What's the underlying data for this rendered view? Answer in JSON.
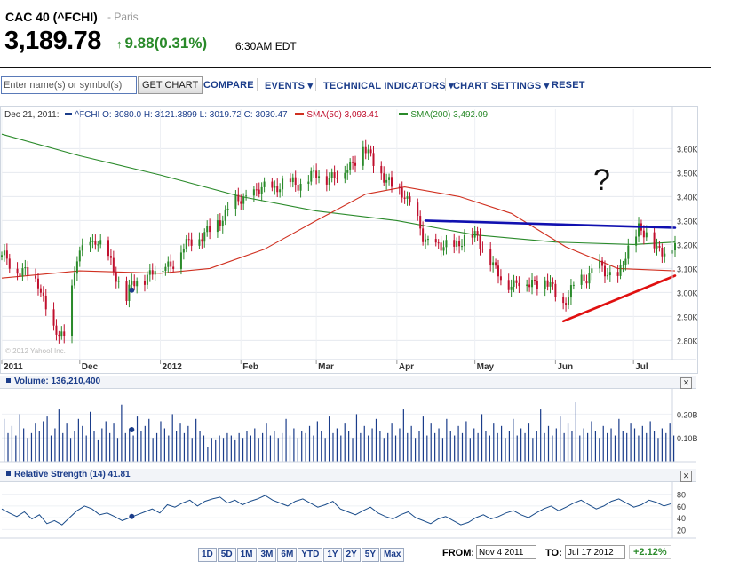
{
  "header": {
    "title": "CAC 40 (^FCHI)",
    "exchange": "- Paris",
    "price": "3,189.78",
    "change": "9.88(0.31%)",
    "time": "6:30AM EDT"
  },
  "toolbar": {
    "search_placeholder": "Enter name(s) or symbol(s)",
    "get_chart": "GET CHART",
    "compare": "COMPARE",
    "events": "EVENTS ▾",
    "technical": "TECHNICAL INDICATORS ▾",
    "settings": "CHART SETTINGS ▾",
    "reset": "RESET"
  },
  "legend": {
    "date": "Dec 21, 2011:",
    "ohlc": "^FCHI O: 3080.0 H: 3121.3899 L: 3019.72 C: 3030.47",
    "sma50": "SMA(50) 3,093.41",
    "sma200": "SMA(200) 3,492.09"
  },
  "copyright": "© 2012 Yahoo! Inc.",
  "annotation_text": "?",
  "volume_panel": {
    "title": "Volume: 136,210,400"
  },
  "rsi_panel": {
    "title": "Relative Strength (14) 41.81"
  },
  "ranges": [
    "1D",
    "5D",
    "1M",
    "3M",
    "6M",
    "YTD",
    "1Y",
    "2Y",
    "5Y",
    "Max"
  ],
  "footer": {
    "from_label": "FROM:",
    "from_value": "Nov 4 2011",
    "to_label": "TO:",
    "to_value": "Jul 17 2012",
    "change_pct": "+2.12%"
  },
  "colors": {
    "up": "#2a8a2a",
    "down": "#c0102e",
    "sma50": "#d03020",
    "sma200": "#2a8a2a",
    "volume": "#1a3c8a",
    "rsi": "#1a4c8a",
    "resistance": "#1010b0",
    "support": "#e01010"
  },
  "chart_data": [
    {
      "type": "candlestick",
      "title": "",
      "xlabel": "",
      "ylabel": "",
      "x_range": [
        "2011-11-01",
        "2012-07-17"
      ],
      "xticks": [
        {
          "label": "2011",
          "date": "2011-11-01"
        },
        {
          "label": "Dec",
          "date": "2011-12-01"
        },
        {
          "label": "2012",
          "date": "2012-01-01"
        },
        {
          "label": "Feb",
          "date": "2012-02-01"
        },
        {
          "label": "Mar",
          "date": "2012-03-01"
        },
        {
          "label": "Apr",
          "date": "2012-04-01"
        },
        {
          "label": "May",
          "date": "2012-05-01"
        },
        {
          "label": "Jun",
          "date": "2012-06-01"
        },
        {
          "label": "Jul",
          "date": "2012-07-01"
        }
      ],
      "yticks": [
        2800,
        2900,
        3000,
        3100,
        3200,
        3300,
        3400,
        3500,
        3600
      ],
      "yticklabels": [
        "2.80K",
        "2.90K",
        "3.00K",
        "3.10K",
        "3.20K",
        "3.30K",
        "3.40K",
        "3.50K",
        "3.60K"
      ],
      "ylim": [
        2720,
        3720
      ],
      "close_series": [
        {
          "date": "2011-11-01",
          "close": 3150
        },
        {
          "date": "2011-11-08",
          "close": 3090
        },
        {
          "date": "2011-11-15",
          "close": 3050
        },
        {
          "date": "2011-11-21",
          "close": 2830
        },
        {
          "date": "2011-11-25",
          "close": 2820
        },
        {
          "date": "2011-11-30",
          "close": 3140
        },
        {
          "date": "2011-12-07",
          "close": 3230
        },
        {
          "date": "2011-12-14",
          "close": 3100
        },
        {
          "date": "2011-12-19",
          "close": 2970
        },
        {
          "date": "2011-12-21",
          "close": 3030
        },
        {
          "date": "2011-12-28",
          "close": 3080
        },
        {
          "date": "2012-01-06",
          "close": 3130
        },
        {
          "date": "2012-01-13",
          "close": 3220
        },
        {
          "date": "2012-01-20",
          "close": 3250
        },
        {
          "date": "2012-01-27",
          "close": 3350
        },
        {
          "date": "2012-02-03",
          "close": 3400
        },
        {
          "date": "2012-02-10",
          "close": 3430
        },
        {
          "date": "2012-02-17",
          "close": 3450
        },
        {
          "date": "2012-02-24",
          "close": 3460
        },
        {
          "date": "2012-03-02",
          "close": 3490
        },
        {
          "date": "2012-03-09",
          "close": 3480
        },
        {
          "date": "2012-03-16",
          "close": 3560
        },
        {
          "date": "2012-03-19",
          "close": 3600
        },
        {
          "date": "2012-03-23",
          "close": 3550
        },
        {
          "date": "2012-03-30",
          "close": 3430
        },
        {
          "date": "2012-04-04",
          "close": 3420
        },
        {
          "date": "2012-04-11",
          "close": 3230
        },
        {
          "date": "2012-04-18",
          "close": 3180
        },
        {
          "date": "2012-04-25",
          "close": 3210
        },
        {
          "date": "2012-05-02",
          "close": 3240
        },
        {
          "date": "2012-05-09",
          "close": 3080
        },
        {
          "date": "2012-05-16",
          "close": 3030
        },
        {
          "date": "2012-05-23",
          "close": 3050
        },
        {
          "date": "2012-05-30",
          "close": 3030
        },
        {
          "date": "2012-06-04",
          "close": 2950
        },
        {
          "date": "2012-06-11",
          "close": 3060
        },
        {
          "date": "2012-06-18",
          "close": 3100
        },
        {
          "date": "2012-06-25",
          "close": 3060
        },
        {
          "date": "2012-07-03",
          "close": 3280
        },
        {
          "date": "2012-07-10",
          "close": 3180
        },
        {
          "date": "2012-07-17",
          "close": 3190
        }
      ],
      "sma50": [
        {
          "date": "2011-11-01",
          "value": 3060
        },
        {
          "date": "2011-12-01",
          "value": 3090
        },
        {
          "date": "2012-01-01",
          "value": 3080
        },
        {
          "date": "2012-01-20",
          "value": 3100
        },
        {
          "date": "2012-02-10",
          "value": 3180
        },
        {
          "date": "2012-03-01",
          "value": 3300
        },
        {
          "date": "2012-03-20",
          "value": 3410
        },
        {
          "date": "2012-04-04",
          "value": 3440
        },
        {
          "date": "2012-04-25",
          "value": 3400
        },
        {
          "date": "2012-05-15",
          "value": 3330
        },
        {
          "date": "2012-06-05",
          "value": 3190
        },
        {
          "date": "2012-06-25",
          "value": 3100
        },
        {
          "date": "2012-07-17",
          "value": 3090
        }
      ],
      "sma200": [
        {
          "date": "2011-11-01",
          "value": 3660
        },
        {
          "date": "2011-12-01",
          "value": 3570
        },
        {
          "date": "2012-01-01",
          "value": 3490
        },
        {
          "date": "2012-02-01",
          "value": 3400
        },
        {
          "date": "2012-03-01",
          "value": 3340
        },
        {
          "date": "2012-04-01",
          "value": 3300
        },
        {
          "date": "2012-05-01",
          "value": 3240
        },
        {
          "date": "2012-06-01",
          "value": 3210
        },
        {
          "date": "2012-07-01",
          "value": 3200
        },
        {
          "date": "2012-07-17",
          "value": 3210
        }
      ],
      "trendlines": [
        {
          "role": "resistance",
          "from": {
            "date": "2012-04-12",
            "value": 3300
          },
          "to": {
            "date": "2012-07-17",
            "value": 3270
          }
        },
        {
          "role": "support",
          "from": {
            "date": "2012-06-04",
            "value": 2880
          },
          "to": {
            "date": "2012-07-17",
            "value": 3070
          }
        }
      ],
      "grid": true
    },
    {
      "type": "bar",
      "title": "Volume: 136,210,400",
      "yticklabels": [
        "0.10B",
        "0.20B"
      ],
      "yticks": [
        0.1,
        0.2
      ],
      "ylim": [
        0,
        0.28
      ],
      "values_billions": [
        0.18,
        0.12,
        0.15,
        0.11,
        0.2,
        0.14,
        0.1,
        0.12,
        0.16,
        0.13,
        0.17,
        0.19,
        0.11,
        0.14,
        0.22,
        0.12,
        0.16,
        0.1,
        0.13,
        0.18,
        0.15,
        0.11,
        0.21,
        0.13,
        0.09,
        0.14,
        0.17,
        0.12,
        0.16,
        0.1,
        0.24,
        0.12,
        0.14,
        0.11,
        0.19,
        0.13,
        0.15,
        0.18,
        0.1,
        0.12,
        0.17,
        0.14,
        0.11,
        0.2,
        0.13,
        0.16,
        0.12,
        0.15,
        0.1,
        0.18,
        0.13,
        0.11,
        0.06,
        0.1,
        0.09,
        0.11,
        0.1,
        0.12,
        0.11,
        0.09,
        0.12,
        0.1,
        0.13,
        0.11,
        0.14,
        0.1,
        0.12,
        0.16,
        0.11,
        0.13,
        0.1,
        0.12,
        0.18,
        0.11,
        0.14,
        0.1,
        0.13,
        0.12,
        0.15,
        0.11,
        0.17,
        0.13,
        0.1,
        0.19,
        0.12,
        0.14,
        0.11,
        0.16,
        0.13,
        0.1,
        0.2,
        0.12,
        0.15,
        0.11,
        0.14,
        0.18,
        0.13,
        0.1,
        0.12,
        0.16,
        0.11,
        0.14,
        0.22,
        0.12,
        0.15,
        0.1,
        0.13,
        0.19,
        0.11,
        0.16,
        0.12,
        0.14,
        0.1,
        0.18,
        0.13,
        0.11,
        0.15,
        0.12,
        0.17,
        0.1,
        0.14,
        0.12,
        0.2,
        0.13,
        0.11,
        0.16,
        0.12,
        0.15,
        0.1,
        0.13,
        0.18,
        0.11,
        0.14,
        0.12,
        0.16,
        0.1,
        0.13,
        0.22,
        0.12,
        0.15,
        0.11,
        0.14,
        0.19,
        0.12,
        0.16,
        0.13,
        0.25,
        0.11,
        0.14,
        0.12,
        0.17,
        0.13,
        0.1,
        0.15,
        0.12,
        0.14,
        0.11,
        0.18,
        0.13,
        0.12,
        0.16,
        0.14,
        0.11,
        0.15,
        0.12,
        0.17,
        0.13,
        0.1,
        0.14,
        0.12,
        0.16,
        0.11
      ],
      "marker_date": "2011-12-21"
    },
    {
      "type": "line",
      "title": "Relative Strength (14) 41.81",
      "yticks": [
        20,
        40,
        60,
        80
      ],
      "yticklabels": [
        "20",
        "40",
        "60",
        "80"
      ],
      "ylim": [
        10,
        90
      ],
      "values": [
        55,
        48,
        42,
        50,
        38,
        45,
        30,
        35,
        28,
        40,
        52,
        60,
        55,
        45,
        48,
        42,
        35,
        40,
        45,
        50,
        55,
        48,
        62,
        58,
        65,
        70,
        60,
        68,
        72,
        75,
        65,
        70,
        62,
        68,
        72,
        78,
        70,
        65,
        60,
        68,
        72,
        65,
        58,
        62,
        68,
        55,
        50,
        45,
        52,
        58,
        48,
        42,
        38,
        45,
        50,
        40,
        35,
        30,
        38,
        42,
        35,
        28,
        32,
        40,
        45,
        38,
        42,
        48,
        52,
        45,
        40,
        48,
        55,
        60,
        52,
        58,
        65,
        70,
        62,
        55,
        60,
        68,
        72,
        65,
        58,
        62,
        70,
        66,
        60,
        64
      ]
    }
  ]
}
